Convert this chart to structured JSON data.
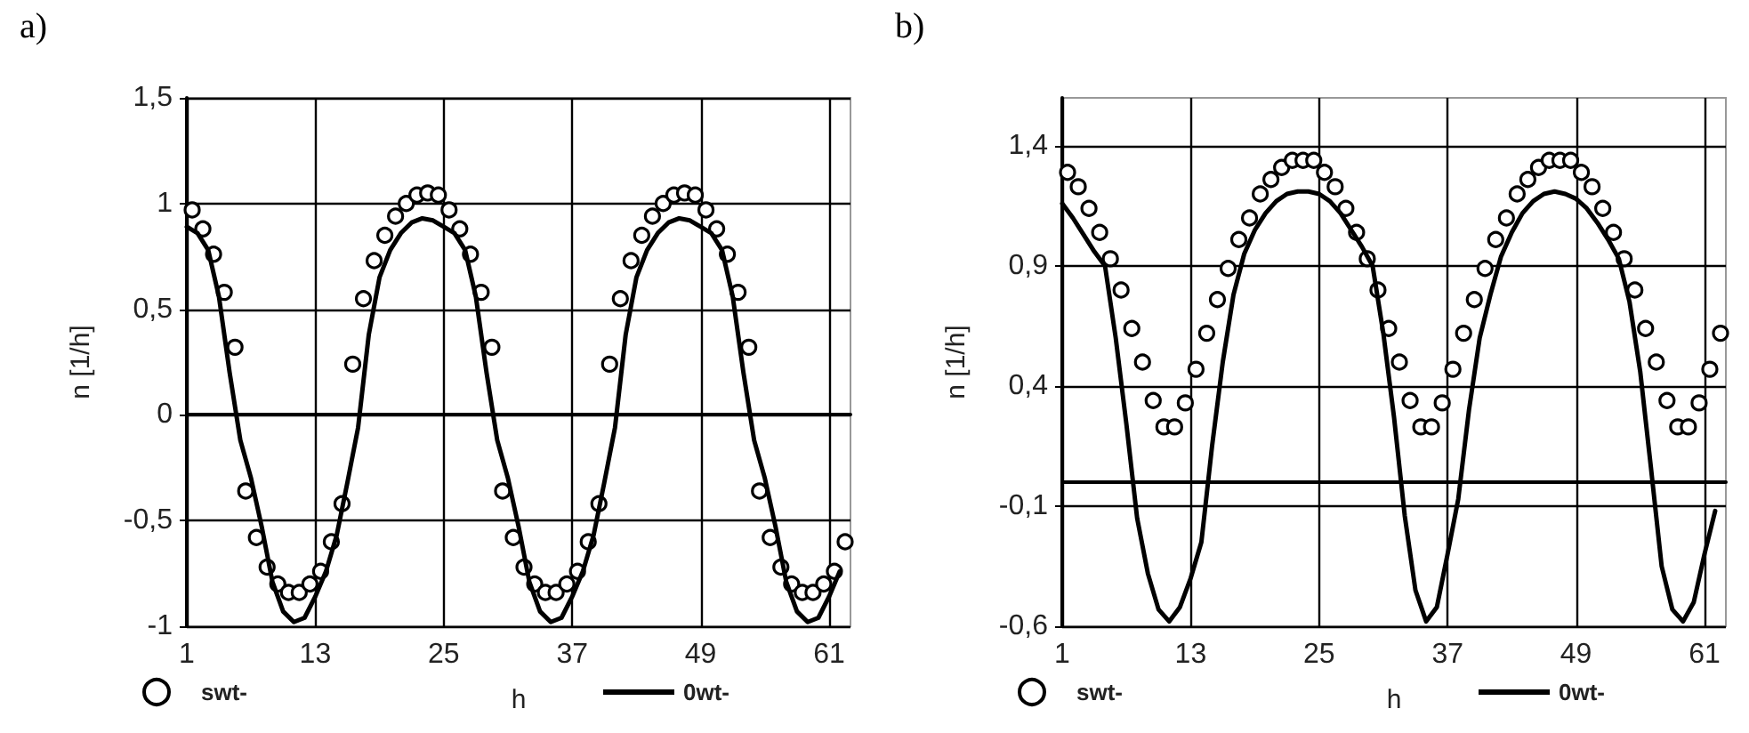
{
  "chart_data": [
    {
      "type": "line",
      "title": "a)",
      "xlabel": "h",
      "ylabel": "n [1/h]",
      "xlim": [
        1,
        63
      ],
      "xticks": [
        1,
        13,
        25,
        37,
        49,
        61
      ],
      "ylim": [
        -1,
        1.5
      ],
      "yticks": [
        {
          "value": -1,
          "label": "-1"
        },
        {
          "value": -0.5,
          "label": "-0,5"
        },
        {
          "value": 0,
          "label": "0"
        },
        {
          "value": 0.5,
          "label": "0,5"
        },
        {
          "value": 1,
          "label": "1"
        },
        {
          "value": 1.5,
          "label": "1,5"
        }
      ],
      "grid": true,
      "legend": "bottom",
      "series": [
        {
          "name": "swt-",
          "type": "scatter",
          "marker": "circle",
          "color": "#000000",
          "x": [
            1.5,
            2.5,
            3.5,
            4.5,
            5.5,
            6.5,
            7.5,
            8.5,
            9.5,
            10.5,
            11.5,
            12.5,
            13.5,
            14.5,
            15.5,
            16.5,
            17.5,
            18.5,
            19.5,
            20.5,
            21.5,
            22.5,
            23.5,
            24.5,
            25.5,
            26.5,
            27.5,
            28.5,
            29.5,
            30.5,
            31.5,
            32.5,
            33.5,
            34.5,
            35.5,
            36.5,
            37.5,
            38.5,
            39.5,
            40.5,
            41.5,
            42.5,
            43.5,
            44.5,
            45.5,
            46.5,
            47.5,
            48.5,
            49.5,
            50.5,
            51.5,
            52.5,
            53.5,
            54.5,
            55.5,
            56.5,
            57.5,
            58.5,
            59.5,
            60.5,
            61.5,
            62.5
          ],
          "values": [
            0.97,
            0.88,
            0.76,
            0.58,
            0.32,
            -0.36,
            -0.58,
            -0.72,
            -0.8,
            -0.84,
            -0.84,
            -0.8,
            -0.74,
            -0.6,
            -0.42,
            0.24,
            0.55,
            0.73,
            0.85,
            0.94,
            1.0,
            1.04,
            1.05,
            1.04,
            0.97,
            0.88,
            0.76,
            0.58,
            0.32,
            -0.36,
            -0.58,
            -0.72,
            -0.8,
            -0.84,
            -0.84,
            -0.8,
            -0.74,
            -0.6,
            -0.42,
            0.24,
            0.55,
            0.73,
            0.85,
            0.94,
            1.0,
            1.04,
            1.05,
            1.04,
            0.97,
            0.88,
            0.76,
            0.58,
            0.32,
            -0.36,
            -0.58,
            -0.72,
            -0.8,
            -0.84,
            -0.84,
            -0.8,
            -0.74,
            -0.6
          ]
        },
        {
          "name": "0wt-",
          "type": "line",
          "color": "#000000",
          "x": [
            1,
            2,
            3,
            4,
            5,
            6,
            7,
            8,
            9,
            10,
            11,
            12,
            13,
            14,
            15,
            16,
            17,
            18,
            19,
            20,
            21,
            22,
            23,
            24,
            25,
            26,
            27,
            28,
            29,
            30,
            31,
            32,
            33,
            34,
            35,
            36,
            37,
            38,
            39,
            40,
            41,
            42,
            43,
            44,
            45,
            46,
            47,
            48,
            49,
            50,
            51,
            52,
            53,
            54,
            55,
            56,
            57,
            58,
            59,
            60,
            61,
            62
          ],
          "values": [
            0.89,
            0.86,
            0.78,
            0.56,
            0.2,
            -0.12,
            -0.3,
            -0.53,
            -0.79,
            -0.93,
            -0.98,
            -0.96,
            -0.86,
            -0.74,
            -0.57,
            -0.32,
            -0.06,
            0.38,
            0.65,
            0.78,
            0.86,
            0.91,
            0.93,
            0.92,
            0.89,
            0.86,
            0.78,
            0.56,
            0.2,
            -0.12,
            -0.3,
            -0.53,
            -0.79,
            -0.93,
            -0.98,
            -0.96,
            -0.86,
            -0.74,
            -0.57,
            -0.32,
            -0.06,
            0.38,
            0.65,
            0.78,
            0.86,
            0.91,
            0.93,
            0.92,
            0.89,
            0.86,
            0.78,
            0.56,
            0.2,
            -0.12,
            -0.3,
            -0.53,
            -0.79,
            -0.93,
            -0.98,
            -0.96,
            -0.86,
            -0.74
          ]
        }
      ]
    },
    {
      "type": "line",
      "title": "b)",
      "xlabel": "h",
      "ylabel": "n [1/h]",
      "xlim": [
        1,
        63
      ],
      "xticks": [
        1,
        13,
        25,
        37,
        49,
        61
      ],
      "ylim": [
        -0.6,
        1.6
      ],
      "yticks": [
        {
          "value": -0.6,
          "label": "-0,6"
        },
        {
          "value": -0.1,
          "label": "-0,1"
        },
        {
          "value": 0.4,
          "label": "0,4"
        },
        {
          "value": 0.9,
          "label": "0,9"
        },
        {
          "value": 1.4,
          "label": "1,4"
        }
      ],
      "grid": true,
      "legend": "bottom",
      "series": [
        {
          "name": "swt-",
          "type": "scatter",
          "marker": "circle",
          "color": "#000000",
          "x": [
            1.5,
            2.5,
            3.5,
            4.5,
            5.5,
            6.5,
            7.5,
            8.5,
            9.5,
            10.5,
            11.5,
            12.5,
            13.5,
            14.5,
            15.5,
            16.5,
            17.5,
            18.5,
            19.5,
            20.5,
            21.5,
            22.5,
            23.5,
            24.5,
            25.5,
            26.5,
            27.5,
            28.5,
            29.5,
            30.5,
            31.5,
            32.5,
            33.5,
            34.5,
            35.5,
            36.5,
            37.5,
            38.5,
            39.5,
            40.5,
            41.5,
            42.5,
            43.5,
            44.5,
            45.5,
            46.5,
            47.5,
            48.5,
            49.5,
            50.5,
            51.5,
            52.5,
            53.5,
            54.5,
            55.5,
            56.5,
            57.5,
            58.5,
            59.5,
            60.5,
            61.5,
            62.5
          ],
          "values": [
            1.29,
            1.23,
            1.14,
            1.04,
            0.93,
            0.8,
            0.64,
            0.5,
            0.34,
            0.23,
            0.23,
            0.33,
            0.47,
            0.62,
            0.76,
            0.89,
            1.01,
            1.1,
            1.2,
            1.26,
            1.31,
            1.34,
            1.34,
            1.34,
            1.29,
            1.23,
            1.14,
            1.04,
            0.93,
            0.8,
            0.64,
            0.5,
            0.34,
            0.23,
            0.23,
            0.33,
            0.47,
            0.62,
            0.76,
            0.89,
            1.01,
            1.1,
            1.2,
            1.26,
            1.31,
            1.34,
            1.34,
            1.34,
            1.29,
            1.23,
            1.14,
            1.04,
            0.93,
            0.8,
            0.64,
            0.5,
            0.34,
            0.23,
            0.23,
            0.33,
            0.47,
            0.62
          ]
        },
        {
          "name": "0wt-",
          "type": "line",
          "color": "#000000",
          "x": [
            1,
            2,
            3,
            4,
            5,
            6,
            7,
            8,
            9,
            10,
            11,
            12,
            13,
            14,
            15,
            16,
            17,
            18,
            19,
            20,
            21,
            22,
            23,
            24,
            25,
            26,
            27,
            28,
            29,
            30,
            31,
            32,
            33,
            34,
            35,
            36,
            37,
            38,
            39,
            40,
            41,
            42,
            43,
            44,
            45,
            46,
            47,
            48,
            49,
            50,
            51,
            52,
            53,
            54,
            55,
            56,
            57,
            58,
            59,
            60,
            61,
            62
          ],
          "values": [
            1.16,
            1.1,
            1.03,
            0.96,
            0.9,
            0.6,
            0.24,
            -0.15,
            -0.38,
            -0.53,
            -0.58,
            -0.52,
            -0.4,
            -0.25,
            0.15,
            0.5,
            0.78,
            0.95,
            1.05,
            1.12,
            1.17,
            1.2,
            1.21,
            1.21,
            1.2,
            1.17,
            1.12,
            1.05,
            0.98,
            0.9,
            0.62,
            0.27,
            -0.14,
            -0.45,
            -0.58,
            -0.52,
            -0.3,
            -0.07,
            0.3,
            0.6,
            0.78,
            0.94,
            1.04,
            1.12,
            1.17,
            1.2,
            1.21,
            1.2,
            1.18,
            1.14,
            1.08,
            1.01,
            0.93,
            0.75,
            0.46,
            0.06,
            -0.35,
            -0.53,
            -0.58,
            -0.5,
            -0.3,
            -0.12
          ]
        }
      ]
    }
  ]
}
